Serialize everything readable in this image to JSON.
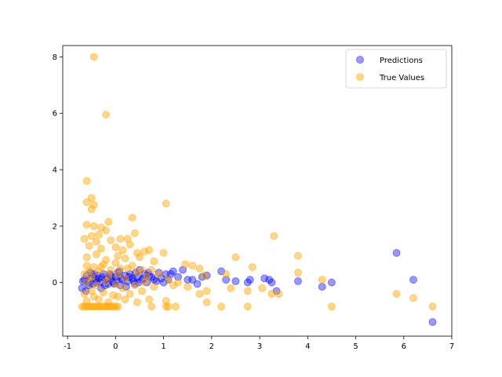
{
  "chart_data": {
    "type": "scatter",
    "title": "",
    "xlabel": "",
    "ylabel": "",
    "xlim": [
      -1.1,
      7.0
    ],
    "ylim": [
      -1.9,
      8.4
    ],
    "xticks": [
      "-1",
      "0",
      "1",
      "2",
      "3",
      "4",
      "5",
      "6",
      "7"
    ],
    "xtick_values": [
      -1,
      0,
      1,
      2,
      3,
      4,
      5,
      6,
      7
    ],
    "yticks": [
      "0",
      "2",
      "4",
      "6",
      "8"
    ],
    "ytick_values": [
      0,
      2,
      4,
      6,
      8
    ],
    "grid": false,
    "legend": "top-right",
    "series": [
      {
        "name": "Predictions",
        "color": "#0000ff",
        "alpha": 0.4,
        "points": [
          [
            -0.7,
            -0.2
          ],
          [
            -0.65,
            0.1
          ],
          [
            -0.6,
            0.25
          ],
          [
            -0.55,
            -0.1
          ],
          [
            -0.5,
            0.2
          ],
          [
            -0.45,
            0.3
          ],
          [
            -0.4,
            0.0
          ],
          [
            -0.35,
            0.15
          ],
          [
            -0.3,
            -0.2
          ],
          [
            -0.25,
            0.3
          ],
          [
            -0.2,
            0.1
          ],
          [
            -0.15,
            -0.05
          ],
          [
            -0.1,
            0.25
          ],
          [
            -0.05,
            0.0
          ],
          [
            0.0,
            0.2
          ],
          [
            0.05,
            0.35
          ],
          [
            0.1,
            -0.1
          ],
          [
            0.15,
            0.1
          ],
          [
            0.2,
            0.25
          ],
          [
            0.25,
            0.05
          ],
          [
            0.3,
            0.3
          ],
          [
            0.35,
            0.15
          ],
          [
            0.4,
            -0.05
          ],
          [
            0.45,
            0.2
          ],
          [
            0.5,
            0.45
          ],
          [
            0.55,
            0.1
          ],
          [
            0.6,
            0.3
          ],
          [
            0.65,
            0.0
          ],
          [
            0.7,
            0.25
          ],
          [
            0.8,
            0.1
          ],
          [
            0.9,
            0.35
          ],
          [
            1.0,
            0.0
          ],
          [
            1.05,
            0.3
          ],
          [
            1.1,
            0.1
          ],
          [
            1.2,
            0.4
          ],
          [
            1.3,
            0.2
          ],
          [
            1.4,
            0.45
          ],
          [
            1.5,
            0.1
          ],
          [
            1.6,
            0.1
          ],
          [
            1.7,
            -0.05
          ],
          [
            1.8,
            0.2
          ],
          [
            1.9,
            0.25
          ],
          [
            2.2,
            0.4
          ],
          [
            2.3,
            0.1
          ],
          [
            2.5,
            0.05
          ],
          [
            2.75,
            0.0
          ],
          [
            2.8,
            0.1
          ],
          [
            3.1,
            0.15
          ],
          [
            3.2,
            0.1
          ],
          [
            3.25,
            0.0
          ],
          [
            3.35,
            -0.3
          ],
          [
            3.8,
            0.05
          ],
          [
            4.3,
            -0.15
          ],
          [
            4.5,
            0.0
          ],
          [
            5.85,
            1.05
          ],
          [
            6.2,
            0.1
          ],
          [
            6.6,
            -1.4
          ],
          [
            -0.68,
            0.05
          ],
          [
            -0.62,
            -0.3
          ],
          [
            -0.58,
            0.0
          ],
          [
            -0.52,
            0.35
          ],
          [
            -0.48,
            -0.05
          ],
          [
            -0.42,
            0.1
          ],
          [
            -0.38,
            0.25
          ],
          [
            -0.32,
            0.0
          ],
          [
            -0.28,
            0.2
          ],
          [
            -0.22,
            -0.1
          ],
          [
            -0.18,
            0.15
          ],
          [
            -0.12,
            0.3
          ],
          [
            -0.08,
            0.05
          ],
          [
            -0.02,
            -0.05
          ],
          [
            0.02,
            0.1
          ],
          [
            0.08,
            0.4
          ],
          [
            0.12,
            0.15
          ],
          [
            0.22,
            -0.15
          ],
          [
            0.28,
            0.2
          ],
          [
            0.38,
            0.05
          ],
          [
            0.42,
            0.35
          ],
          [
            0.48,
            0.0
          ],
          [
            0.58,
            0.15
          ],
          [
            0.68,
            0.35
          ],
          [
            0.75,
            0.2
          ],
          [
            0.85,
            0.05
          ],
          [
            0.95,
            0.15
          ],
          [
            1.15,
            0.3
          ]
        ]
      },
      {
        "name": "True Values",
        "color": "#ffa500",
        "alpha": 0.45,
        "points": [
          [
            -0.45,
            8.0
          ],
          [
            -0.2,
            5.95
          ],
          [
            -0.6,
            3.6
          ],
          [
            -0.5,
            3.0
          ],
          [
            -0.6,
            2.85
          ],
          [
            -0.45,
            2.75
          ],
          [
            -0.5,
            2.6
          ],
          [
            1.05,
            2.8
          ],
          [
            0.35,
            2.3
          ],
          [
            -0.15,
            2.15
          ],
          [
            -0.6,
            2.05
          ],
          [
            -0.45,
            2.0
          ],
          [
            -0.3,
            1.95
          ],
          [
            -0.2,
            1.85
          ],
          [
            -0.35,
            1.7
          ],
          [
            -0.5,
            1.65
          ],
          [
            -0.65,
            1.55
          ],
          [
            -0.4,
            1.45
          ],
          [
            -0.1,
            1.5
          ],
          [
            0.1,
            1.55
          ],
          [
            0.25,
            1.55
          ],
          [
            0.4,
            1.75
          ],
          [
            -0.55,
            1.3
          ],
          [
            -0.3,
            1.2
          ],
          [
            0.0,
            1.25
          ],
          [
            0.15,
            1.15
          ],
          [
            0.3,
            1.35
          ],
          [
            0.45,
            1.05
          ],
          [
            0.6,
            1.1
          ],
          [
            0.7,
            1.15
          ],
          [
            1.0,
            1.05
          ],
          [
            -0.6,
            0.9
          ],
          [
            -0.4,
            1.0
          ],
          [
            -0.2,
            0.8
          ],
          [
            0.05,
            0.95
          ],
          [
            0.2,
            0.85
          ],
          [
            0.5,
            0.9
          ],
          [
            0.8,
            0.75
          ],
          [
            -0.6,
            0.6
          ],
          [
            -0.45,
            0.55
          ],
          [
            -0.25,
            0.65
          ],
          [
            0.0,
            0.7
          ],
          [
            0.25,
            0.5
          ],
          [
            0.55,
            0.45
          ],
          [
            0.75,
            0.45
          ],
          [
            1.45,
            0.65
          ],
          [
            1.6,
            0.6
          ],
          [
            1.75,
            0.5
          ],
          [
            -0.65,
            0.3
          ],
          [
            -0.5,
            0.2
          ],
          [
            -0.35,
            0.4
          ],
          [
            -0.15,
            0.25
          ],
          [
            0.05,
            0.3
          ],
          [
            0.2,
            0.15
          ],
          [
            0.45,
            0.35
          ],
          [
            0.65,
            0.2
          ],
          [
            0.9,
            0.3
          ],
          [
            1.1,
            0.1
          ],
          [
            1.3,
            0.0
          ],
          [
            1.85,
            0.25
          ],
          [
            2.3,
            0.3
          ],
          [
            2.5,
            0.9
          ],
          [
            2.85,
            0.55
          ],
          [
            3.3,
            1.65
          ],
          [
            3.8,
            0.95
          ],
          [
            3.8,
            0.35
          ],
          [
            -0.6,
            0.0
          ],
          [
            -0.4,
            -0.1
          ],
          [
            -0.2,
            0.05
          ],
          [
            0.0,
            -0.05
          ],
          [
            0.15,
            -0.2
          ],
          [
            0.4,
            -0.1
          ],
          [
            0.6,
            0.0
          ],
          [
            0.8,
            -0.15
          ],
          [
            1.2,
            -0.1
          ],
          [
            1.5,
            -0.15
          ],
          [
            1.75,
            -0.4
          ],
          [
            1.9,
            -0.3
          ],
          [
            2.4,
            -0.2
          ],
          [
            2.75,
            -0.3
          ],
          [
            3.05,
            -0.2
          ],
          [
            3.25,
            -0.4
          ],
          [
            3.4,
            -0.4
          ],
          [
            4.3,
            0.1
          ],
          [
            -0.65,
            -0.4
          ],
          [
            -0.45,
            -0.5
          ],
          [
            -0.25,
            -0.35
          ],
          [
            -0.05,
            -0.45
          ],
          [
            0.2,
            -0.6
          ],
          [
            0.45,
            -0.7
          ],
          [
            0.7,
            -0.6
          ],
          [
            1.05,
            -0.65
          ],
          [
            1.25,
            -0.85
          ],
          [
            1.9,
            -0.7
          ],
          [
            2.2,
            -0.85
          ],
          [
            2.75,
            -0.85
          ],
          [
            -0.7,
            -0.85
          ],
          [
            -0.65,
            -0.85
          ],
          [
            -0.6,
            -0.85
          ],
          [
            -0.55,
            -0.85
          ],
          [
            -0.5,
            -0.85
          ],
          [
            -0.45,
            -0.85
          ],
          [
            -0.4,
            -0.85
          ],
          [
            -0.35,
            -0.85
          ],
          [
            -0.3,
            -0.85
          ],
          [
            -0.25,
            -0.85
          ],
          [
            -0.2,
            -0.85
          ],
          [
            -0.15,
            -0.85
          ],
          [
            -0.1,
            -0.85
          ],
          [
            -0.05,
            -0.85
          ],
          [
            0.0,
            -0.85
          ],
          [
            0.05,
            -0.85
          ],
          [
            0.75,
            -0.85
          ],
          [
            1.05,
            -0.85
          ],
          [
            1.1,
            -0.85
          ],
          [
            4.5,
            -0.85
          ],
          [
            5.85,
            -0.4
          ],
          [
            6.2,
            -0.55
          ],
          [
            6.6,
            -0.85
          ],
          [
            -0.6,
            -0.65
          ],
          [
            -0.5,
            -0.3
          ],
          [
            -0.35,
            -0.6
          ],
          [
            -0.15,
            -0.7
          ],
          [
            0.05,
            -0.5
          ],
          [
            0.3,
            -0.4
          ],
          [
            0.55,
            -0.3
          ],
          [
            -0.55,
            0.4
          ],
          [
            -0.3,
            0.55
          ],
          [
            -0.1,
            0.45
          ],
          [
            0.1,
            0.5
          ],
          [
            0.35,
            0.6
          ]
        ]
      }
    ]
  }
}
